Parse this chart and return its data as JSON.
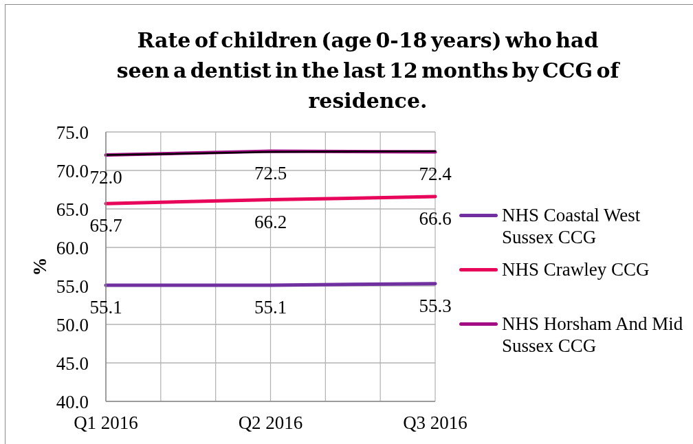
{
  "chart_data": {
    "type": "line",
    "title": "Rate of children (age 0-18 years) who had seen a dentist in the last 12 months by CCG of residence.",
    "ylabel": "%",
    "categories": [
      "Q1 2016",
      "Q2 2016",
      "Q3 2016"
    ],
    "series": [
      {
        "name": "NHS Coastal West Sussex CCG",
        "color": "#7030a0",
        "values": [
          55.1,
          55.1,
          55.3
        ],
        "value_labels": [
          "55.1",
          "55.1",
          "55.3"
        ]
      },
      {
        "name": "NHS Crawley CCG",
        "color": "#e8065a",
        "values": [
          65.7,
          66.2,
          66.6
        ],
        "value_labels": [
          "65.7",
          "66.2",
          "66.6"
        ]
      },
      {
        "name": "NHS Horsham And Mid Sussex CCG",
        "color": "#a30d84",
        "values": [
          72.0,
          72.5,
          72.4
        ],
        "value_labels": [
          "72.0",
          "72.5",
          "72.4"
        ]
      },
      {
        "color": "#000000",
        "values": [
          72.0,
          72.4,
          72.5
        ]
      }
    ],
    "ylim": [
      40,
      75
    ],
    "yticks": [
      {
        "value": 40,
        "label": "40.0"
      },
      {
        "value": 45,
        "label": "45.0"
      },
      {
        "value": 50,
        "label": "50.0"
      },
      {
        "value": 55,
        "label": "55.0"
      },
      {
        "value": 60,
        "label": "60.0"
      },
      {
        "value": 65,
        "label": "65.0"
      },
      {
        "value": 70,
        "label": "70.0"
      },
      {
        "value": 75,
        "label": "75.0"
      }
    ],
    "grid": true,
    "legend": "right",
    "marker": "none"
  }
}
